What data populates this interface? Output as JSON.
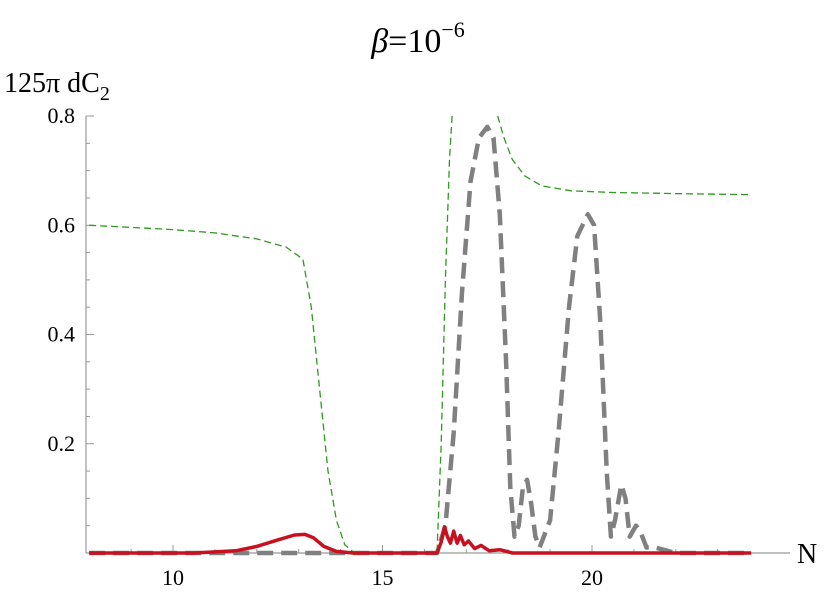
{
  "chart_data": {
    "type": "line",
    "title": {
      "symbol": "β",
      "eq": "=10",
      "exp": "−6"
    },
    "ylabel": {
      "main": "125π dC",
      "sub": "2"
    },
    "xlabel": "N",
    "xlim": [
      8,
      24
    ],
    "ylim": [
      0,
      0.8
    ],
    "xticks": [
      {
        "value": 10,
        "label": "10"
      },
      {
        "value": 15,
        "label": "15"
      },
      {
        "value": 20,
        "label": "20"
      }
    ],
    "yticks": [
      {
        "value": 0.2,
        "label": "0.2"
      },
      {
        "value": 0.4,
        "label": "0.4"
      },
      {
        "value": 0.6,
        "label": "0.6"
      },
      {
        "value": 0.8,
        "label": "0.8"
      }
    ],
    "grid": false,
    "series": [
      {
        "id": "green-thin-dashed",
        "color": "#2e9a1e",
        "style": "dashed-thin",
        "points": [
          [
            8.0,
            0.6
          ],
          [
            9.0,
            0.596
          ],
          [
            10.0,
            0.592
          ],
          [
            11.0,
            0.586
          ],
          [
            12.0,
            0.575
          ],
          [
            12.7,
            0.56
          ],
          [
            13.1,
            0.538
          ],
          [
            13.3,
            0.45
          ],
          [
            13.5,
            0.3
          ],
          [
            13.7,
            0.15
          ],
          [
            13.9,
            0.06
          ],
          [
            14.1,
            0.015
          ],
          [
            14.3,
            0.002
          ],
          [
            14.5,
            0.0
          ],
          [
            16.3,
            0.0
          ],
          [
            16.4,
            0.2
          ],
          [
            16.5,
            0.5
          ],
          [
            16.6,
            0.72
          ],
          [
            16.66,
            0.8
          ]
        ],
        "points2": [
          [
            17.75,
            0.8
          ],
          [
            17.9,
            0.76
          ],
          [
            18.1,
            0.72
          ],
          [
            18.4,
            0.69
          ],
          [
            18.8,
            0.672
          ],
          [
            19.5,
            0.663
          ],
          [
            20.5,
            0.66
          ],
          [
            22.0,
            0.658
          ],
          [
            23.8,
            0.656
          ]
        ]
      },
      {
        "id": "gray-thick-dashed",
        "color": "#808080",
        "style": "dashed-thick",
        "points": [
          [
            8.0,
            0.0
          ],
          [
            16.3,
            0.0
          ],
          [
            16.5,
            0.05
          ],
          [
            16.7,
            0.22
          ],
          [
            16.9,
            0.48
          ],
          [
            17.1,
            0.68
          ],
          [
            17.3,
            0.76
          ],
          [
            17.5,
            0.78
          ],
          [
            17.65,
            0.76
          ],
          [
            17.8,
            0.62
          ],
          [
            17.95,
            0.35
          ],
          [
            18.05,
            0.12
          ],
          [
            18.15,
            0.03
          ],
          [
            18.25,
            0.05
          ],
          [
            18.35,
            0.12
          ],
          [
            18.45,
            0.134
          ],
          [
            18.55,
            0.09
          ],
          [
            18.65,
            0.03
          ],
          [
            18.75,
            0.01
          ],
          [
            19.0,
            0.06
          ],
          [
            19.2,
            0.22
          ],
          [
            19.45,
            0.45
          ],
          [
            19.65,
            0.58
          ],
          [
            19.9,
            0.62
          ],
          [
            20.05,
            0.6
          ],
          [
            20.2,
            0.42
          ],
          [
            20.35,
            0.15
          ],
          [
            20.45,
            0.03
          ],
          [
            20.55,
            0.06
          ],
          [
            20.7,
            0.125
          ],
          [
            20.8,
            0.1
          ],
          [
            20.9,
            0.03
          ],
          [
            21.05,
            0.05
          ],
          [
            21.15,
            0.04
          ],
          [
            21.3,
            0.01
          ],
          [
            21.5,
            0.01
          ],
          [
            22.0,
            0.0
          ],
          [
            23.8,
            0.0
          ]
        ]
      },
      {
        "id": "red-solid",
        "color": "#c8101e",
        "style": "solid",
        "points": [
          [
            8.0,
            0.0
          ],
          [
            10.5,
            0.0
          ],
          [
            11.5,
            0.004
          ],
          [
            12.0,
            0.012
          ],
          [
            12.5,
            0.024
          ],
          [
            12.9,
            0.033
          ],
          [
            13.15,
            0.034
          ],
          [
            13.35,
            0.028
          ],
          [
            13.6,
            0.012
          ],
          [
            13.9,
            0.003
          ],
          [
            14.3,
            0.0
          ],
          [
            16.3,
            0.0
          ],
          [
            16.4,
            0.02
          ],
          [
            16.48,
            0.048
          ],
          [
            16.55,
            0.03
          ],
          [
            16.62,
            0.018
          ],
          [
            16.7,
            0.04
          ],
          [
            16.78,
            0.018
          ],
          [
            16.86,
            0.032
          ],
          [
            16.95,
            0.015
          ],
          [
            17.05,
            0.022
          ],
          [
            17.2,
            0.008
          ],
          [
            17.35,
            0.014
          ],
          [
            17.55,
            0.004
          ],
          [
            17.8,
            0.006
          ],
          [
            18.1,
            0.0
          ],
          [
            23.8,
            0.0
          ]
        ]
      }
    ]
  }
}
